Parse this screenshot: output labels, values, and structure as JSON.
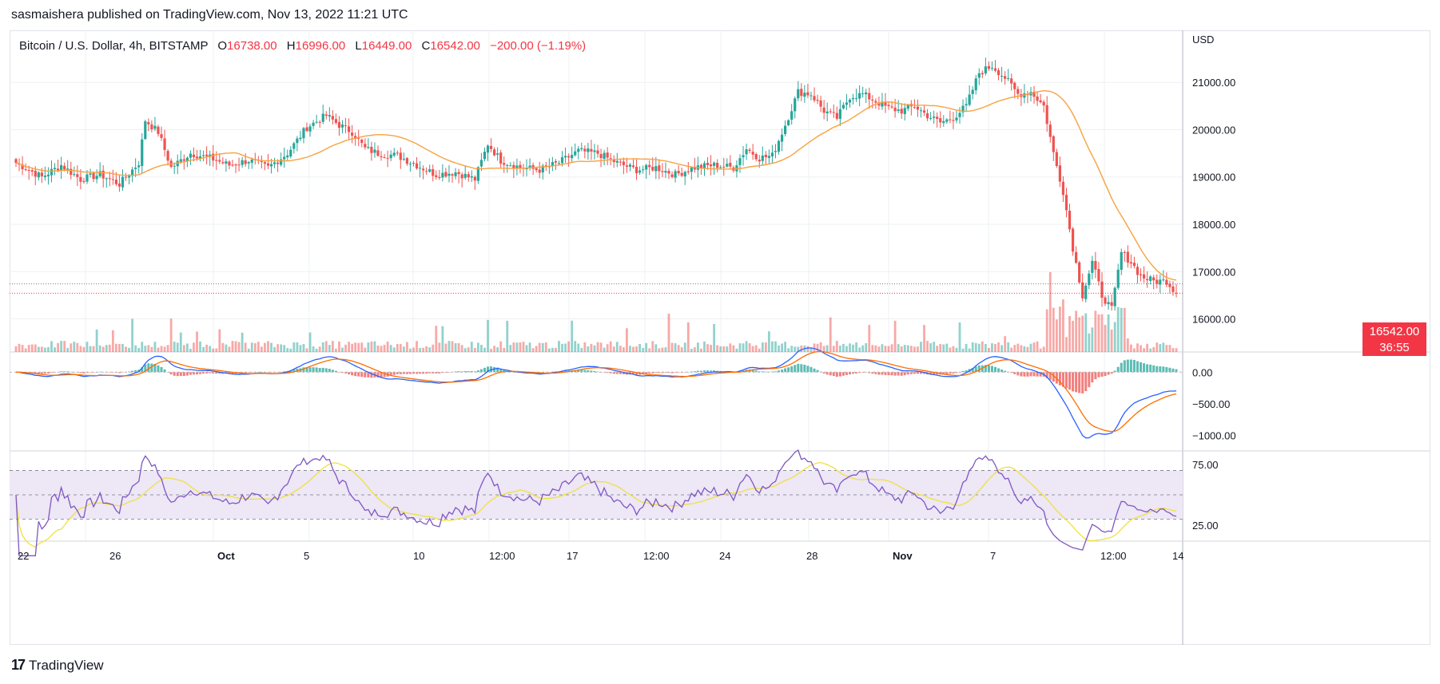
{
  "header": {
    "published_text": "sasmaishera published on TradingView.com, Nov 13, 2022 11:21 UTC"
  },
  "legend": {
    "symbol": "Bitcoin / U.S. Dollar, 4h, BITSTAMP",
    "o_label": "O",
    "o_value": "16738.00",
    "h_label": "H",
    "h_value": "16996.00",
    "l_label": "L",
    "l_value": "16449.00",
    "c_label": "C",
    "c_value": "16542.00",
    "change": "−200.00 (−1.19%)"
  },
  "price_tag": {
    "price": "16542.00",
    "countdown": "36:55"
  },
  "footer": {
    "brand": "TradingView",
    "logo_mark": "17"
  },
  "colors": {
    "up": "#26a69a",
    "down": "#ef5350",
    "ma": "#f7a240",
    "macd": "#2962ff",
    "signal": "#ff6d00",
    "rsi": "#7e57c2",
    "rsi_ma": "#f0e040",
    "rsi_band": "#ede7f6",
    "grid": "#eef0f3",
    "last_price": "#f23645"
  },
  "chart_data": [
    {
      "type": "candlestick",
      "title": "Bitcoin / U.S. Dollar, 4h, BITSTAMP",
      "y_axis": {
        "unit": "USD",
        "ticks": [
          16000,
          17000,
          18000,
          19000,
          20000,
          21000
        ],
        "tick_labels": [
          "16000.00",
          "17000.00",
          "18000.00",
          "19000.00",
          "20000.00",
          "21000.00"
        ],
        "range": [
          15300,
          22100
        ]
      },
      "x_axis": {
        "tick_labels": [
          "22",
          "26",
          "Oct",
          "5",
          "10",
          "12:00",
          "17",
          "12:00",
          "24",
          "28",
          "Nov",
          "7",
          "12:00",
          "14"
        ]
      },
      "last_price": 16542,
      "anchors": [
        [
          0,
          19300
        ],
        [
          8,
          19000
        ],
        [
          14,
          19250
        ],
        [
          20,
          18950
        ],
        [
          26,
          19050
        ],
        [
          32,
          18850
        ],
        [
          38,
          19300
        ],
        [
          40,
          20200
        ],
        [
          44,
          19950
        ],
        [
          48,
          19200
        ],
        [
          54,
          19500
        ],
        [
          60,
          19400
        ],
        [
          66,
          19250
        ],
        [
          72,
          19350
        ],
        [
          78,
          19200
        ],
        [
          84,
          19500
        ],
        [
          90,
          20050
        ],
        [
          96,
          20300
        ],
        [
          100,
          20100
        ],
        [
          104,
          19950
        ],
        [
          108,
          19600
        ],
        [
          112,
          19500
        ],
        [
          118,
          19450
        ],
        [
          124,
          19250
        ],
        [
          130,
          19050
        ],
        [
          136,
          19100
        ],
        [
          142,
          18950
        ],
        [
          146,
          19700
        ],
        [
          150,
          19350
        ],
        [
          156,
          19200
        ],
        [
          162,
          19150
        ],
        [
          168,
          19300
        ],
        [
          174,
          19550
        ],
        [
          180,
          19500
        ],
        [
          186,
          19300
        ],
        [
          192,
          19150
        ],
        [
          198,
          19200
        ],
        [
          204,
          19050
        ],
        [
          210,
          19200
        ],
        [
          216,
          19250
        ],
        [
          222,
          19200
        ],
        [
          226,
          19600
        ],
        [
          230,
          19400
        ],
        [
          234,
          19450
        ],
        [
          238,
          20100
        ],
        [
          242,
          20800
        ],
        [
          246,
          20750
        ],
        [
          250,
          20400
        ],
        [
          254,
          20250
        ],
        [
          258,
          20700
        ],
        [
          262,
          20750
        ],
        [
          266,
          20600
        ],
        [
          270,
          20450
        ],
        [
          274,
          20400
        ],
        [
          278,
          20500
        ],
        [
          282,
          20300
        ],
        [
          286,
          20150
        ],
        [
          290,
          20250
        ],
        [
          294,
          20500
        ],
        [
          298,
          21200
        ],
        [
          302,
          21350
        ],
        [
          306,
          21100
        ],
        [
          310,
          20750
        ],
        [
          314,
          20800
        ],
        [
          318,
          20500
        ],
        [
          321,
          19500
        ],
        [
          324,
          18700
        ],
        [
          327,
          17500
        ],
        [
          330,
          16500
        ],
        [
          333,
          17200
        ],
        [
          336,
          16500
        ],
        [
          339,
          16200
        ],
        [
          342,
          17400
        ],
        [
          345,
          17200
        ],
        [
          348,
          16900
        ],
        [
          352,
          16800
        ],
        [
          356,
          16800
        ],
        [
          359,
          16542
        ]
      ],
      "volume_scale_max": 1
    },
    {
      "type": "line",
      "title": "",
      "series": [
        {
          "name": "",
          "values": ""
        },
        {
          "name": "",
          "values": ""
        }
      ],
      "histogram": true,
      "y_axis": {
        "ticks": [
          0,
          -500,
          -1000
        ],
        "tick_labels": [
          "0.00",
          "−500.00",
          "−1000.00"
        ],
        "range": [
          -1250,
          320
        ]
      }
    },
    {
      "type": "line",
      "title": "",
      "y_axis": {
        "ticks": [
          25,
          75
        ],
        "tick_labels": [
          "25.00",
          "75.00"
        ],
        "range": [
          12,
          86
        ],
        "band": [
          30,
          70
        ]
      }
    }
  ]
}
